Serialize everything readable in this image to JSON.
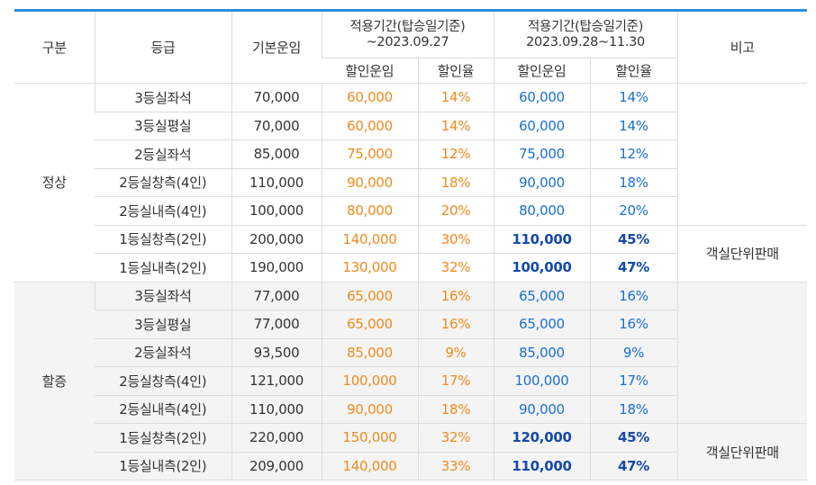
{
  "header": {
    "category": "구분",
    "grade": "등급",
    "base_fare": "기본운임",
    "period1_line1": "적용기간(탑승일기준)",
    "period1_line2": "~2023.09.27",
    "period2_line1": "적용기간(탑승일기준)",
    "period2_line2": "2023.09.28~11.30",
    "note": "비고",
    "discount_fare": "할인운임",
    "discount_rate": "할인율"
  },
  "groups": [
    {
      "label": "정상",
      "note": "객실단위판매",
      "rows": [
        {
          "grade": "3등실좌석",
          "base": "70,000",
          "p1_fare": "60,000",
          "p1_rate": "14%",
          "p2_fare": "60,000",
          "p2_rate": "14%"
        },
        {
          "grade": "3등실평실",
          "base": "70,000",
          "p1_fare": "60,000",
          "p1_rate": "14%",
          "p2_fare": "60,000",
          "p2_rate": "14%"
        },
        {
          "grade": "2등실좌석",
          "base": "85,000",
          "p1_fare": "75,000",
          "p1_rate": "12%",
          "p2_fare": "75,000",
          "p2_rate": "12%"
        },
        {
          "grade": "2등실창측(4인)",
          "base": "110,000",
          "p1_fare": "90,000",
          "p1_rate": "18%",
          "p2_fare": "90,000",
          "p2_rate": "18%"
        },
        {
          "grade": "2등실내측(4인)",
          "base": "100,000",
          "p1_fare": "80,000",
          "p1_rate": "20%",
          "p2_fare": "80,000",
          "p2_rate": "20%"
        },
        {
          "grade": "1등실창측(2인)",
          "base": "200,000",
          "p1_fare": "140,000",
          "p1_rate": "30%",
          "p2_fare": "110,000",
          "p2_rate": "45%"
        },
        {
          "grade": "1등실내측(2인)",
          "base": "190,000",
          "p1_fare": "130,000",
          "p1_rate": "32%",
          "p2_fare": "100,000",
          "p2_rate": "47%"
        }
      ]
    },
    {
      "label": "할증",
      "note": "객실단위판매",
      "rows": [
        {
          "grade": "3등실좌석",
          "base": "77,000",
          "p1_fare": "65,000",
          "p1_rate": "16%",
          "p2_fare": "65,000",
          "p2_rate": "16%"
        },
        {
          "grade": "3등실평실",
          "base": "77,000",
          "p1_fare": "65,000",
          "p1_rate": "16%",
          "p2_fare": "65,000",
          "p2_rate": "16%"
        },
        {
          "grade": "2등실좌석",
          "base": "93,500",
          "p1_fare": "85,000",
          "p1_rate": "9%",
          "p2_fare": "85,000",
          "p2_rate": "9%"
        },
        {
          "grade": "2등실창측(4인)",
          "base": "121,000",
          "p1_fare": "100,000",
          "p1_rate": "17%",
          "p2_fare": "100,000",
          "p2_rate": "17%"
        },
        {
          "grade": "2등실내측(4인)",
          "base": "110,000",
          "p1_fare": "90,000",
          "p1_rate": "18%",
          "p2_fare": "90,000",
          "p2_rate": "18%"
        },
        {
          "grade": "1등실창측(2인)",
          "base": "220,000",
          "p1_fare": "150,000",
          "p1_rate": "32%",
          "p2_fare": "120,000",
          "p2_rate": "45%"
        },
        {
          "grade": "1등실내측(2인)",
          "base": "209,000",
          "p1_fare": "140,000",
          "p1_rate": "33%",
          "p2_fare": "110,000",
          "p2_rate": "47%"
        }
      ]
    }
  ],
  "colors": {
    "top_border": "#2b8fe0",
    "period1_text": "#f08a1c",
    "period2_text": "#1a6fd0",
    "period2_highlight": "#1549a8",
    "shaded_row": "#f4f4f4"
  }
}
